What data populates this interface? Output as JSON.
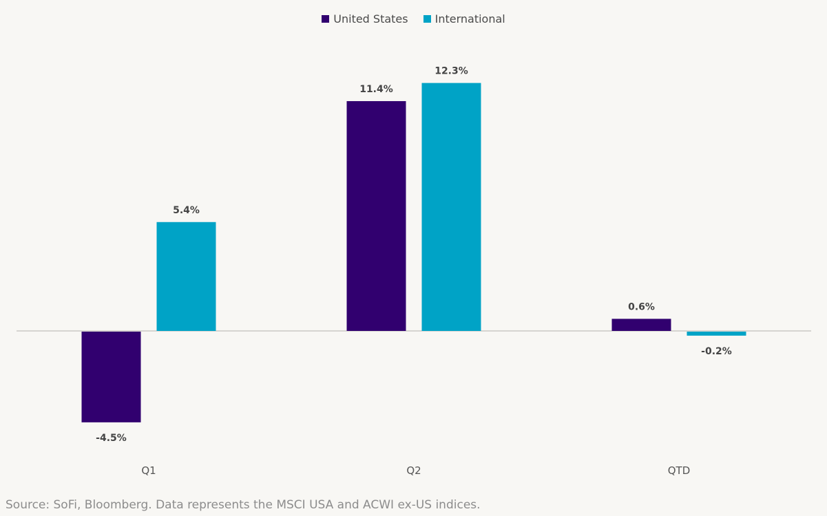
{
  "chart_data": {
    "type": "bar",
    "title": "",
    "xlabel": "",
    "ylabel": "",
    "categories": [
      "Q1",
      "Q2",
      "QTD"
    ],
    "series": [
      {
        "name": "United States",
        "color": "#31006f",
        "values": [
          -4.5,
          11.4,
          0.6
        ],
        "labels": [
          "-4.5%",
          "11.4%",
          "0.6%"
        ]
      },
      {
        "name": "International",
        "color": "#00a3c6",
        "values": [
          5.4,
          12.3,
          -0.2
        ],
        "labels": [
          "5.4%",
          "12.3%",
          "-0.2%"
        ]
      }
    ],
    "ylim": [
      -6.7,
      13.7
    ],
    "grid": false,
    "legend": "top-center",
    "value_suffix": "%"
  },
  "legend": {
    "items": [
      {
        "label": "United States",
        "color": "#31006f"
      },
      {
        "label": "International",
        "color": "#00a3c6"
      }
    ]
  },
  "footer": {
    "source": "Source: SoFi, Bloomberg. Data represents the MSCI USA and ACWI ex-US indices."
  }
}
